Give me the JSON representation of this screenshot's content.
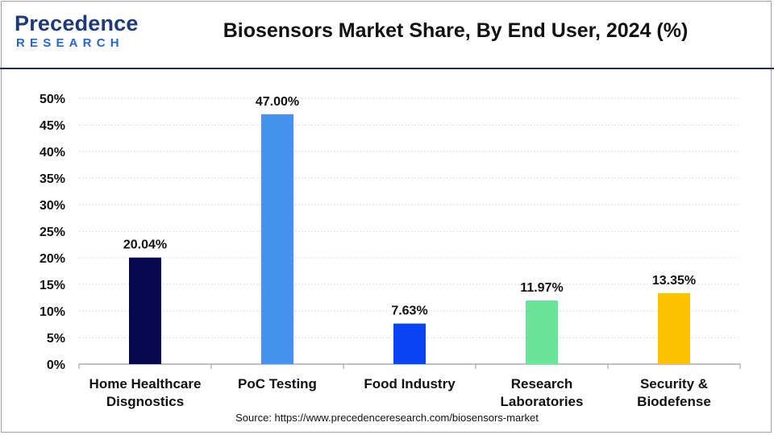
{
  "header": {
    "logo_main": "Precedence",
    "logo_sub": "RESEARCH",
    "title": "Biosensors Market Share, By End User, 2024 (%)"
  },
  "source": "Source: https://www.precedenceresearch.com/biosensors-market",
  "colors": {
    "header_rule": "#1f2d4d",
    "bars": [
      "#07084f",
      "#4593ef",
      "#0a45f5",
      "#6ae49b",
      "#fdc300"
    ]
  },
  "chart_data": {
    "type": "bar",
    "title": "Biosensors Market Share, By End User, 2024 (%)",
    "categories": [
      [
        "Home Healthcare",
        "Disgnostics"
      ],
      [
        "PoC Testing"
      ],
      [
        "Food Industry"
      ],
      [
        "Research",
        "Laboratories"
      ],
      [
        "Security &",
        "Biodefense"
      ]
    ],
    "values": [
      20.04,
      47.0,
      7.63,
      11.97,
      13.35
    ],
    "data_labels": [
      "20.04%",
      "47.00%",
      "7.63%",
      "11.97%",
      "13.35%"
    ],
    "ylim": [
      0,
      50
    ],
    "yticks": [
      0,
      5,
      10,
      15,
      20,
      25,
      30,
      35,
      40,
      45,
      50
    ],
    "ytick_labels": [
      "0%",
      "5%",
      "10%",
      "15%",
      "20%",
      "25%",
      "30%",
      "35%",
      "40%",
      "45%",
      "50%"
    ],
    "grid": true,
    "legend": "none"
  }
}
